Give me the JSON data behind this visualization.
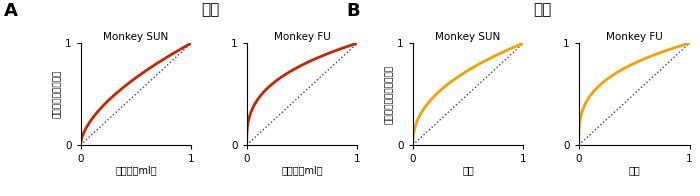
{
  "title_A": "利得",
  "title_B": "確率",
  "label_A": "A",
  "label_B": "B",
  "subtitle_A1": "Monkey SUN",
  "subtitle_A2": "Monkey FU",
  "subtitle_B1": "Monkey SUN",
  "subtitle_B2": "Monkey FU",
  "ylabel_A": "効用（利得の主観）",
  "xlabel_A": "報酷量（ml）",
  "ylabel_B": "確率荷重（確率の主観）",
  "xlabel_B": "確率",
  "color_A": "#cc2200",
  "color_B": "#f5a000",
  "dotted_color": "#444444",
  "background": "#ffffff",
  "power_A1": 0.6,
  "power_A2": 0.35,
  "power_B1": 0.45,
  "power_B2": 0.32
}
